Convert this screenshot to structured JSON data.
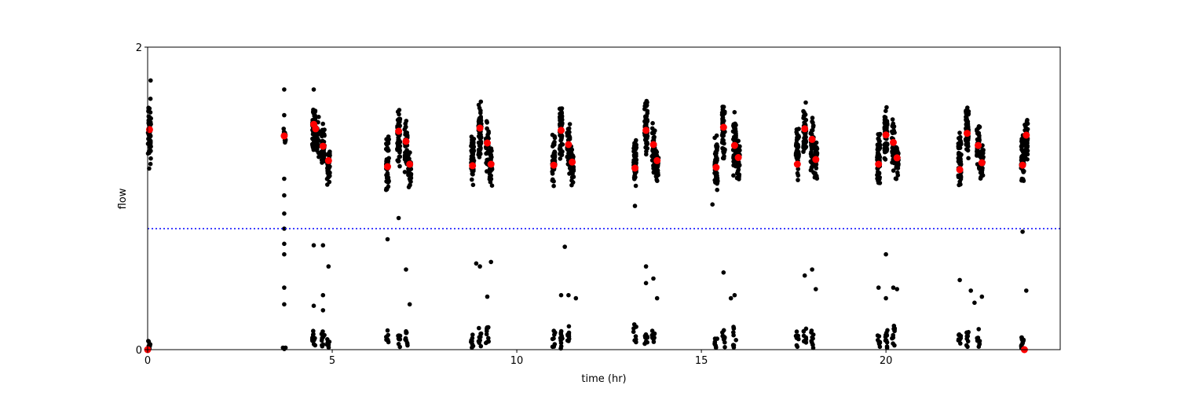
{
  "chart_data": {
    "type": "scatter",
    "title": "",
    "xlabel": "time (hr)",
    "ylabel": "flow",
    "xlim": [
      0,
      24.72
    ],
    "ylim": [
      0,
      2
    ],
    "xticks": [
      0,
      5,
      10,
      15,
      20
    ],
    "yticks": [
      0,
      2
    ],
    "grid": false,
    "threshold": {
      "y": 0.8,
      "color": "#0000ff",
      "style": "dotted"
    },
    "colors": {
      "samples": "#000000",
      "means": "#ff0000"
    },
    "sample_clusters": [
      {
        "x": 0.05,
        "ymin": 1.13,
        "ymax": 1.72,
        "n": 60
      },
      {
        "x": 3.7,
        "ymin": 1.36,
        "ymax": 1.48,
        "n": 15
      },
      {
        "x": 4.5,
        "ymin": 1.3,
        "ymax": 1.65,
        "n": 60
      },
      {
        "x": 4.6,
        "ymin": 1.25,
        "ymax": 1.55,
        "n": 30
      },
      {
        "x": 4.75,
        "ymin": 1.18,
        "ymax": 1.5,
        "n": 40
      },
      {
        "x": 4.9,
        "ymin": 1.06,
        "ymax": 1.35,
        "n": 40
      },
      {
        "x": 6.5,
        "ymin": 1.04,
        "ymax": 1.45,
        "n": 50
      },
      {
        "x": 6.8,
        "ymin": 1.2,
        "ymax": 1.62,
        "n": 60
      },
      {
        "x": 7.0,
        "ymin": 1.15,
        "ymax": 1.55,
        "n": 40
      },
      {
        "x": 7.1,
        "ymin": 1.06,
        "ymax": 1.35,
        "n": 35
      },
      {
        "x": 8.8,
        "ymin": 1.06,
        "ymax": 1.45,
        "n": 50
      },
      {
        "x": 9.0,
        "ymin": 1.25,
        "ymax": 1.66,
        "n": 60
      },
      {
        "x": 9.2,
        "ymin": 1.15,
        "ymax": 1.55,
        "n": 40
      },
      {
        "x": 9.3,
        "ymin": 1.07,
        "ymax": 1.35,
        "n": 35
      },
      {
        "x": 11.0,
        "ymin": 1.07,
        "ymax": 1.45,
        "n": 50
      },
      {
        "x": 11.2,
        "ymin": 1.25,
        "ymax": 1.64,
        "n": 60
      },
      {
        "x": 11.4,
        "ymin": 1.15,
        "ymax": 1.52,
        "n": 40
      },
      {
        "x": 11.5,
        "ymin": 1.05,
        "ymax": 1.35,
        "n": 35
      },
      {
        "x": 13.2,
        "ymin": 1.04,
        "ymax": 1.44,
        "n": 50
      },
      {
        "x": 13.5,
        "ymin": 1.25,
        "ymax": 1.66,
        "n": 60
      },
      {
        "x": 13.7,
        "ymin": 1.15,
        "ymax": 1.52,
        "n": 40
      },
      {
        "x": 13.8,
        "ymin": 1.08,
        "ymax": 1.35,
        "n": 35
      },
      {
        "x": 15.4,
        "ymin": 1.02,
        "ymax": 1.45,
        "n": 50
      },
      {
        "x": 15.6,
        "ymin": 1.22,
        "ymax": 1.64,
        "n": 60
      },
      {
        "x": 15.9,
        "ymin": 1.12,
        "ymax": 1.6,
        "n": 40
      },
      {
        "x": 16.0,
        "ymin": 1.1,
        "ymax": 1.4,
        "n": 35
      },
      {
        "x": 17.6,
        "ymin": 1.1,
        "ymax": 1.5,
        "n": 50
      },
      {
        "x": 17.8,
        "ymin": 1.25,
        "ymax": 1.66,
        "n": 60
      },
      {
        "x": 18.0,
        "ymin": 1.15,
        "ymax": 1.55,
        "n": 40
      },
      {
        "x": 18.1,
        "ymin": 1.1,
        "ymax": 1.4,
        "n": 35
      },
      {
        "x": 19.8,
        "ymin": 1.06,
        "ymax": 1.48,
        "n": 50
      },
      {
        "x": 20.0,
        "ymin": 1.22,
        "ymax": 1.64,
        "n": 60
      },
      {
        "x": 20.2,
        "ymin": 1.15,
        "ymax": 1.55,
        "n": 40
      },
      {
        "x": 20.3,
        "ymin": 1.1,
        "ymax": 1.4,
        "n": 35
      },
      {
        "x": 22.0,
        "ymin": 1.04,
        "ymax": 1.48,
        "n": 50
      },
      {
        "x": 22.2,
        "ymin": 1.25,
        "ymax": 1.62,
        "n": 60
      },
      {
        "x": 22.5,
        "ymin": 1.15,
        "ymax": 1.55,
        "n": 40
      },
      {
        "x": 22.6,
        "ymin": 1.1,
        "ymax": 1.4,
        "n": 35
      },
      {
        "x": 23.7,
        "ymin": 1.04,
        "ymax": 1.48,
        "n": 50
      },
      {
        "x": 23.8,
        "ymin": 1.2,
        "ymax": 1.56,
        "n": 40
      }
    ],
    "low_clusters": [
      {
        "x": 0.05,
        "ymin": 0.0,
        "ymax": 0.06,
        "n": 8
      },
      {
        "x": 3.7,
        "ymin": 0.0,
        "ymax": 0.02,
        "n": 4
      },
      {
        "x": 4.5,
        "ymin": 0.0,
        "ymax": 0.15,
        "n": 14
      },
      {
        "x": 4.75,
        "ymin": 0.0,
        "ymax": 0.14,
        "n": 10
      },
      {
        "x": 4.9,
        "ymin": 0.0,
        "ymax": 0.1,
        "n": 8
      },
      {
        "x": 6.5,
        "ymin": 0.0,
        "ymax": 0.14,
        "n": 8
      },
      {
        "x": 6.8,
        "ymin": 0.0,
        "ymax": 0.14,
        "n": 10
      },
      {
        "x": 7.0,
        "ymin": 0.0,
        "ymax": 0.17,
        "n": 10
      },
      {
        "x": 8.8,
        "ymin": 0.0,
        "ymax": 0.13,
        "n": 8
      },
      {
        "x": 9.0,
        "ymin": 0.0,
        "ymax": 0.15,
        "n": 10
      },
      {
        "x": 9.2,
        "ymin": 0.0,
        "ymax": 0.16,
        "n": 10
      },
      {
        "x": 11.0,
        "ymin": 0.0,
        "ymax": 0.13,
        "n": 8
      },
      {
        "x": 11.2,
        "ymin": 0.0,
        "ymax": 0.14,
        "n": 10
      },
      {
        "x": 11.4,
        "ymin": 0.0,
        "ymax": 0.17,
        "n": 10
      },
      {
        "x": 13.2,
        "ymin": 0.0,
        "ymax": 0.17,
        "n": 8
      },
      {
        "x": 13.5,
        "ymin": 0.0,
        "ymax": 0.16,
        "n": 10
      },
      {
        "x": 13.7,
        "ymin": 0.0,
        "ymax": 0.15,
        "n": 10
      },
      {
        "x": 15.4,
        "ymin": 0.0,
        "ymax": 0.1,
        "n": 8
      },
      {
        "x": 15.6,
        "ymin": 0.0,
        "ymax": 0.15,
        "n": 10
      },
      {
        "x": 15.9,
        "ymin": 0.0,
        "ymax": 0.17,
        "n": 10
      },
      {
        "x": 17.6,
        "ymin": 0.0,
        "ymax": 0.16,
        "n": 8
      },
      {
        "x": 17.8,
        "ymin": 0.0,
        "ymax": 0.16,
        "n": 10
      },
      {
        "x": 18.0,
        "ymin": 0.0,
        "ymax": 0.18,
        "n": 10
      },
      {
        "x": 19.8,
        "ymin": 0.0,
        "ymax": 0.15,
        "n": 8
      },
      {
        "x": 20.0,
        "ymin": 0.0,
        "ymax": 0.17,
        "n": 10
      },
      {
        "x": 20.2,
        "ymin": 0.0,
        "ymax": 0.17,
        "n": 10
      },
      {
        "x": 22.0,
        "ymin": 0.0,
        "ymax": 0.13,
        "n": 8
      },
      {
        "x": 22.2,
        "ymin": 0.0,
        "ymax": 0.16,
        "n": 10
      },
      {
        "x": 22.5,
        "ymin": 0.0,
        "ymax": 0.14,
        "n": 10
      },
      {
        "x": 23.7,
        "ymin": 0.0,
        "ymax": 0.1,
        "n": 12
      }
    ],
    "outliers": [
      [
        0.08,
        1.78
      ],
      [
        3.7,
        1.72
      ],
      [
        3.7,
        1.55
      ],
      [
        3.7,
        1.13
      ],
      [
        3.7,
        1.02
      ],
      [
        3.7,
        0.9
      ],
      [
        3.7,
        0.8
      ],
      [
        3.7,
        0.7
      ],
      [
        3.7,
        0.63
      ],
      [
        3.7,
        0.41
      ],
      [
        3.7,
        0.3
      ],
      [
        4.5,
        1.72
      ],
      [
        4.5,
        0.69
      ],
      [
        4.5,
        0.29
      ],
      [
        4.75,
        0.69
      ],
      [
        4.75,
        0.36
      ],
      [
        4.75,
        0.26
      ],
      [
        4.9,
        0.55
      ],
      [
        6.5,
        0.73
      ],
      [
        6.8,
        0.87
      ],
      [
        7.0,
        0.53
      ],
      [
        7.1,
        0.3
      ],
      [
        8.9,
        0.57
      ],
      [
        9.0,
        0.55
      ],
      [
        9.2,
        0.35
      ],
      [
        9.3,
        0.58
      ],
      [
        11.3,
        0.68
      ],
      [
        11.2,
        0.36
      ],
      [
        11.4,
        0.36
      ],
      [
        11.6,
        0.34
      ],
      [
        13.2,
        0.95
      ],
      [
        13.5,
        0.55
      ],
      [
        13.5,
        0.44
      ],
      [
        13.7,
        0.47
      ],
      [
        13.8,
        0.34
      ],
      [
        15.3,
        0.96
      ],
      [
        15.6,
        0.51
      ],
      [
        15.8,
        0.34
      ],
      [
        15.9,
        0.36
      ],
      [
        17.8,
        0.49
      ],
      [
        18.0,
        0.53
      ],
      [
        18.1,
        0.4
      ],
      [
        19.8,
        0.41
      ],
      [
        20.0,
        0.63
      ],
      [
        20.0,
        0.34
      ],
      [
        20.2,
        0.41
      ],
      [
        20.3,
        0.4
      ],
      [
        22.0,
        0.46
      ],
      [
        22.3,
        0.39
      ],
      [
        22.4,
        0.31
      ],
      [
        22.6,
        0.35
      ],
      [
        23.7,
        0.78
      ],
      [
        23.8,
        0.39
      ]
    ],
    "means": [
      [
        0.05,
        1.455
      ],
      [
        0.0,
        0.0
      ],
      [
        3.7,
        1.413
      ],
      [
        4.5,
        1.49
      ],
      [
        4.55,
        1.46
      ],
      [
        4.75,
        1.345
      ],
      [
        4.9,
        1.25
      ],
      [
        6.5,
        1.21
      ],
      [
        6.8,
        1.444
      ],
      [
        7.0,
        1.377
      ],
      [
        7.1,
        1.226
      ],
      [
        8.8,
        1.216
      ],
      [
        9.0,
        1.465
      ],
      [
        9.2,
        1.366
      ],
      [
        9.3,
        1.226
      ],
      [
        11.0,
        1.22
      ],
      [
        11.2,
        1.45
      ],
      [
        11.4,
        1.356
      ],
      [
        11.5,
        1.24
      ],
      [
        13.2,
        1.2
      ],
      [
        13.5,
        1.45
      ],
      [
        13.7,
        1.356
      ],
      [
        13.8,
        1.25
      ],
      [
        15.4,
        1.205
      ],
      [
        15.6,
        1.47
      ],
      [
        15.9,
        1.35
      ],
      [
        16.0,
        1.27
      ],
      [
        17.6,
        1.226
      ],
      [
        17.8,
        1.46
      ],
      [
        18.0,
        1.39
      ],
      [
        18.1,
        1.257
      ],
      [
        19.8,
        1.226
      ],
      [
        20.0,
        1.42
      ],
      [
        20.2,
        1.37
      ],
      [
        20.3,
        1.268
      ],
      [
        22.0,
        1.19
      ],
      [
        22.2,
        1.43
      ],
      [
        22.5,
        1.35
      ],
      [
        22.6,
        1.236
      ],
      [
        23.7,
        1.22
      ],
      [
        23.8,
        1.418
      ],
      [
        23.75,
        0.0
      ]
    ]
  }
}
